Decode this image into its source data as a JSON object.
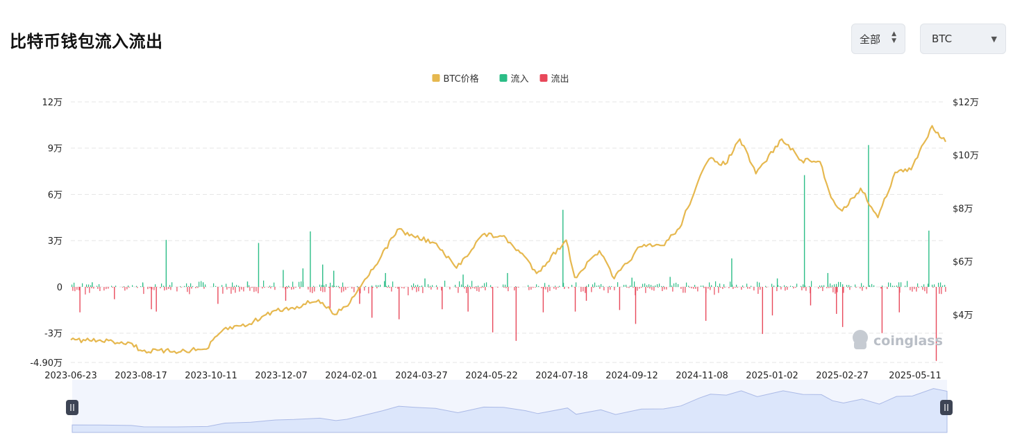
{
  "title": "比特币钱包流入流出",
  "controls": {
    "range": {
      "selected": "全部"
    },
    "asset": {
      "selected": "BTC"
    }
  },
  "watermark": "coinglass",
  "colors": {
    "price": "#e6b84f",
    "inflow": "#2bbd86",
    "outflow": "#e8485a",
    "grid": "#e6e6e6",
    "navigator_fill": "#dce6fb"
  },
  "chart_data": {
    "type": "bar",
    "legend": {
      "position": "top-center",
      "items": [
        {
          "name": "BTC价格",
          "color": "#e6b84f"
        },
        {
          "name": "流入",
          "color": "#2bbd86"
        },
        {
          "name": "流出",
          "color": "#e8485a"
        }
      ]
    },
    "x_ticks": [
      "2023-06-23",
      "2023-08-17",
      "2023-10-11",
      "2023-12-07",
      "2024-02-01",
      "2024-03-27",
      "2024-05-22",
      "2024-07-18",
      "2024-09-12",
      "2024-11-08",
      "2025-01-02",
      "2025-02-27",
      "2025-05-11"
    ],
    "x_range": [
      "2023-06-23",
      "2025-06-02"
    ],
    "y_left": {
      "ticks": [
        "12万",
        "9万",
        "6万",
        "3万",
        "0",
        "-3万",
        "-4.90万"
      ],
      "ylim": [
        -49000,
        120000
      ]
    },
    "y_right": {
      "ticks": [
        "$12万",
        "$10万",
        "$8万",
        "$6万",
        "$4万"
      ],
      "ylim": [
        22000,
        120000
      ]
    },
    "grid": true,
    "price_series": {
      "name": "BTC价格",
      "points": [
        [
          "2023-06-23",
          30500
        ],
        [
          "2023-07-15",
          30200
        ],
        [
          "2023-08-10",
          29400
        ],
        [
          "2023-08-20",
          26300
        ],
        [
          "2023-09-15",
          26200
        ],
        [
          "2023-10-11",
          27000
        ],
        [
          "2023-10-25",
          34500
        ],
        [
          "2023-11-15",
          36500
        ],
        [
          "2023-12-05",
          41500
        ],
        [
          "2023-12-20",
          42600
        ],
        [
          "2024-01-10",
          45500
        ],
        [
          "2024-01-23",
          40000
        ],
        [
          "2024-02-01",
          43000
        ],
        [
          "2024-02-15",
          52000
        ],
        [
          "2024-03-01",
          62000
        ],
        [
          "2024-03-14",
          72000
        ],
        [
          "2024-03-27",
          69500
        ],
        [
          "2024-04-13",
          67000
        ],
        [
          "2024-05-01",
          57500
        ],
        [
          "2024-05-22",
          70000
        ],
        [
          "2024-06-07",
          69500
        ],
        [
          "2024-06-25",
          62000
        ],
        [
          "2024-07-05",
          55500
        ],
        [
          "2024-07-29",
          68000
        ],
        [
          "2024-08-05",
          54000
        ],
        [
          "2024-08-25",
          64000
        ],
        [
          "2024-09-06",
          53500
        ],
        [
          "2024-09-27",
          65500
        ],
        [
          "2024-10-15",
          66000
        ],
        [
          "2024-10-29",
          72500
        ],
        [
          "2024-11-13",
          90000
        ],
        [
          "2024-11-22",
          98500
        ],
        [
          "2024-12-05",
          96500
        ],
        [
          "2024-12-17",
          106000
        ],
        [
          "2024-12-30",
          93000
        ],
        [
          "2025-01-20",
          106000
        ],
        [
          "2025-02-05",
          98000
        ],
        [
          "2025-02-20",
          97500
        ],
        [
          "2025-03-01",
          84000
        ],
        [
          "2025-03-10",
          79000
        ],
        [
          "2025-03-25",
          87500
        ],
        [
          "2025-04-08",
          76500
        ],
        [
          "2025-04-22",
          93500
        ],
        [
          "2025-05-05",
          94500
        ],
        [
          "2025-05-22",
          111000
        ],
        [
          "2025-06-02",
          105000
        ]
      ]
    },
    "flow_series": {
      "inflow": {
        "name": "流入",
        "peaks": [
          [
            "2023-07-10",
            3000
          ],
          [
            "2023-08-20",
            2500
          ],
          [
            "2023-09-08",
            30500
          ],
          [
            "2023-10-08",
            3000
          ],
          [
            "2023-11-13",
            3500
          ],
          [
            "2023-11-22",
            28500
          ],
          [
            "2023-12-12",
            11000
          ],
          [
            "2023-12-28",
            12000
          ],
          [
            "2024-01-03",
            36000
          ],
          [
            "2024-01-13",
            14500
          ],
          [
            "2024-01-22",
            10500
          ],
          [
            "2024-03-04",
            9000
          ],
          [
            "2024-04-05",
            5500
          ],
          [
            "2024-05-06",
            8000
          ],
          [
            "2024-06-11",
            9000
          ],
          [
            "2024-07-26",
            50000
          ],
          [
            "2024-09-20",
            6000
          ],
          [
            "2024-10-21",
            6500
          ],
          [
            "2024-12-10",
            18500
          ],
          [
            "2025-01-16",
            5500
          ],
          [
            "2025-02-07",
            72500
          ],
          [
            "2025-02-26",
            9000
          ],
          [
            "2025-03-31",
            92000
          ],
          [
            "2025-05-19",
            36500
          ]
        ]
      },
      "outflow": {
        "name": "流出",
        "peaks": [
          [
            "2023-06-30",
            -16500
          ],
          [
            "2023-07-28",
            -8000
          ],
          [
            "2023-08-27",
            -14500
          ],
          [
            "2023-08-31",
            -16000
          ],
          [
            "2023-10-20",
            -11000
          ],
          [
            "2023-12-14",
            -9000
          ],
          [
            "2024-01-19",
            -14500
          ],
          [
            "2024-02-12",
            -11000
          ],
          [
            "2024-02-22",
            -20000
          ],
          [
            "2024-03-15",
            -21000
          ],
          [
            "2024-04-19",
            -14500
          ],
          [
            "2024-05-10",
            -16000
          ],
          [
            "2024-05-30",
            -29500
          ],
          [
            "2024-06-18",
            -35000
          ],
          [
            "2024-07-10",
            -16500
          ],
          [
            "2024-08-05",
            -16000
          ],
          [
            "2024-08-14",
            -9000
          ],
          [
            "2024-09-10",
            -15000
          ],
          [
            "2024-09-23",
            -24000
          ],
          [
            "2024-11-19",
            -22000
          ],
          [
            "2025-01-04",
            -30500
          ],
          [
            "2025-01-12",
            -18500
          ],
          [
            "2025-02-12",
            -12000
          ],
          [
            "2025-03-05",
            -17500
          ],
          [
            "2025-03-10",
            -26000
          ],
          [
            "2025-04-11",
            -30000
          ],
          [
            "2025-04-25",
            -16500
          ],
          [
            "2025-05-25",
            -48000
          ]
        ]
      }
    }
  }
}
